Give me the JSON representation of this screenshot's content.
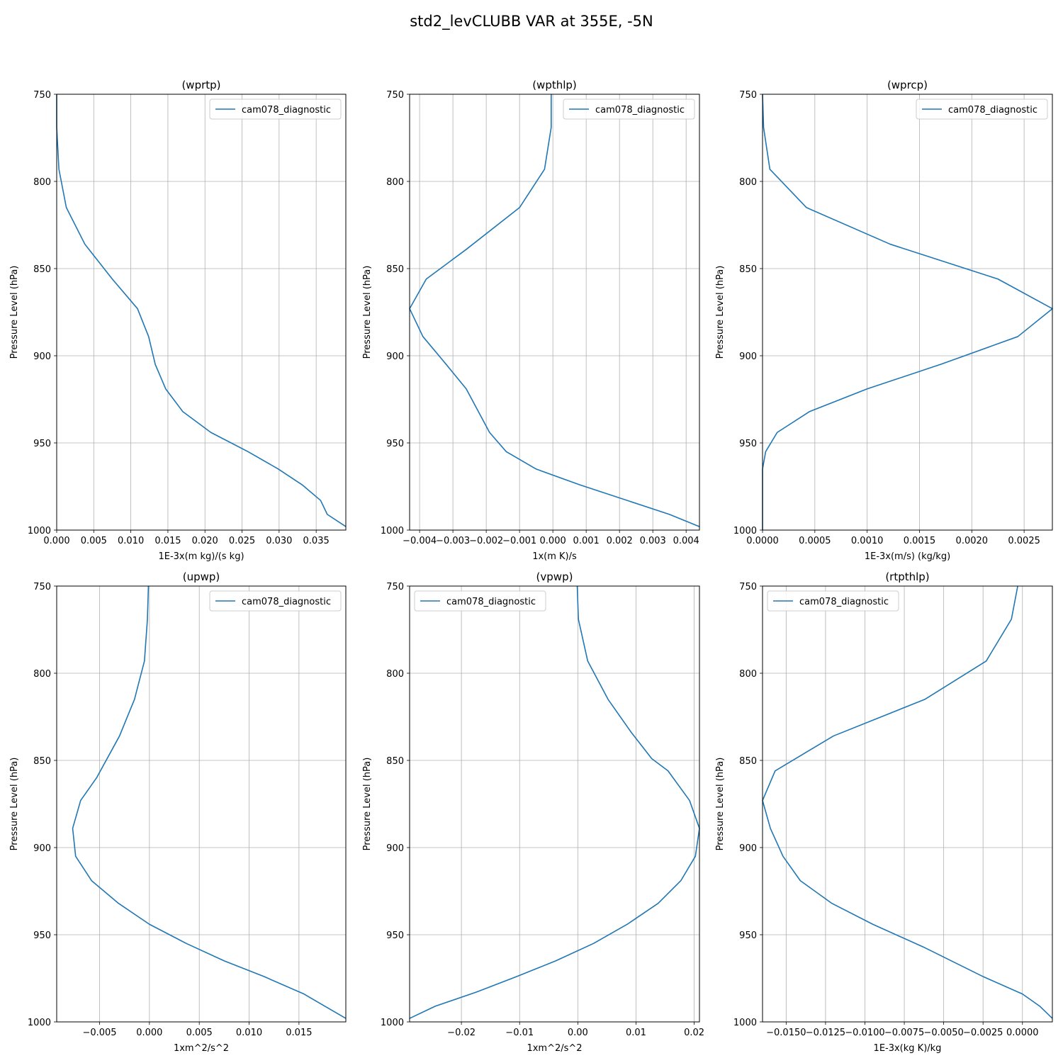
{
  "figure_title": "std2_levCLUBB VAR at 355E, -5N",
  "colors": {
    "series": "#1f77b4",
    "grid": "#b0b0b0",
    "axes": "#000000"
  },
  "chart_data": [
    {
      "type": "line",
      "title": "(wprtp)",
      "xlabel": "1E-3x(m kg)/(s kg)",
      "ylabel": "Pressure Level (hPa)",
      "xlim": [
        0.0,
        0.039
      ],
      "ylim": [
        1000,
        750
      ],
      "xticks": [
        0.0,
        0.005,
        0.01,
        0.015,
        0.02,
        0.025,
        0.03,
        0.035
      ],
      "xticklabels": [
        "0.000",
        "0.005",
        "0.010",
        "0.015",
        "0.020",
        "0.025",
        "0.030",
        "0.035"
      ],
      "yticks": [
        750,
        800,
        850,
        900,
        950,
        1000
      ],
      "yticklabels": [
        "750",
        "800",
        "850",
        "900",
        "950",
        "1000"
      ],
      "grid": true,
      "legend": "upper right",
      "series": [
        {
          "name": "cam078_diagnostic",
          "x": [
            0.0,
            0.0,
            0.0003,
            0.0013,
            0.0038,
            0.0075,
            0.0109,
            0.0124,
            0.0133,
            0.0147,
            0.017,
            0.0208,
            0.0258,
            0.0299,
            0.0331,
            0.0356,
            0.0365,
            0.039
          ],
          "y": [
            750,
            769,
            793,
            815,
            836,
            856,
            873,
            889,
            905,
            919,
            932,
            944,
            955,
            965,
            974,
            983,
            991,
            998
          ]
        }
      ]
    },
    {
      "type": "line",
      "title": "(wpthlp)",
      "xlabel": "1x(m K)/s",
      "ylabel": "Pressure Level (hPa)",
      "xlim": [
        -0.0043,
        0.0044
      ],
      "ylim": [
        1000,
        750
      ],
      "xticks": [
        -0.004,
        -0.003,
        -0.002,
        -0.001,
        0.0,
        0.001,
        0.002,
        0.003,
        0.004
      ],
      "xticklabels": [
        "−0.004",
        "−0.003",
        "−0.002",
        "−0.001",
        "0.000",
        "0.001",
        "0.002",
        "0.003",
        "0.004"
      ],
      "yticks": [
        750,
        800,
        850,
        900,
        950,
        1000
      ],
      "yticklabels": [
        "750",
        "800",
        "850",
        "900",
        "950",
        "1000"
      ],
      "grid": true,
      "legend": "upper right",
      "series": [
        {
          "name": "cam078_diagnostic",
          "x": [
            -5e-05,
            -5e-05,
            -0.00025,
            -0.001,
            -0.0026,
            -0.0038,
            -0.0043,
            -0.0039,
            -0.0032,
            -0.0026,
            -0.0019,
            -0.0014,
            -0.0005,
            0.0008,
            0.0035,
            0.0044
          ],
          "y": [
            750,
            769,
            793,
            815,
            839,
            856,
            873,
            889,
            905,
            919,
            944,
            955,
            965,
            974,
            991,
            998
          ]
        }
      ]
    },
    {
      "type": "line",
      "title": "(wprcp)",
      "xlabel": "1E-3x(m/s) (kg/kg)",
      "ylabel": "Pressure Level (hPa)",
      "xlim": [
        0.0,
        0.00277
      ],
      "ylim": [
        1000,
        750
      ],
      "xticks": [
        0.0,
        0.0005,
        0.001,
        0.0015,
        0.002,
        0.0025
      ],
      "xticklabels": [
        "0.0000",
        "0.0005",
        "0.0010",
        "0.0015",
        "0.0020",
        "0.0025"
      ],
      "yticks": [
        750,
        800,
        850,
        900,
        950,
        1000
      ],
      "yticklabels": [
        "750",
        "800",
        "850",
        "900",
        "950",
        "1000"
      ],
      "grid": true,
      "legend": "upper right",
      "series": [
        {
          "name": "cam078_diagnostic",
          "x": [
            0.0,
            1e-05,
            7e-05,
            0.00042,
            0.00122,
            0.00225,
            0.00277,
            0.00244,
            0.0017,
            0.001,
            0.00045,
            0.00014,
            3e-05,
            0.0,
            0.0
          ],
          "y": [
            750,
            769,
            793,
            815,
            836,
            856,
            873,
            889,
            905,
            919,
            932,
            944,
            955,
            965,
            1000
          ]
        }
      ]
    },
    {
      "type": "line",
      "title": "(upwp)",
      "xlabel": "1xm^2/s^2",
      "ylabel": "Pressure Level (hPa)",
      "xlim": [
        -0.0093,
        0.0197
      ],
      "ylim": [
        1000,
        750
      ],
      "xticks": [
        -0.005,
        0.0,
        0.005,
        0.01,
        0.015
      ],
      "xticklabels": [
        "−0.005",
        "0.000",
        "0.005",
        "0.010",
        "0.015"
      ],
      "yticks": [
        750,
        800,
        850,
        900,
        950,
        1000
      ],
      "yticklabels": [
        "750",
        "800",
        "850",
        "900",
        "950",
        "1000"
      ],
      "grid": true,
      "legend": "upper right",
      "series": [
        {
          "name": "cam078_diagnostic",
          "x": [
            -0.0001,
            -0.0002,
            -0.0005,
            -0.0015,
            -0.003,
            -0.0053,
            -0.0069,
            -0.0077,
            -0.0074,
            -0.0058,
            -0.0031,
            0.0,
            0.0037,
            0.0075,
            0.0115,
            0.0155,
            0.0197
          ],
          "y": [
            750,
            769,
            793,
            815,
            836,
            860,
            873,
            889,
            905,
            919,
            932,
            944,
            955,
            965,
            974,
            984,
            998
          ]
        }
      ]
    },
    {
      "type": "line",
      "title": "(vpwp)",
      "xlabel": "1xm^2/s^2",
      "ylabel": "Pressure Level (hPa)",
      "xlim": [
        -0.0289,
        0.0209
      ],
      "ylim": [
        1000,
        750
      ],
      "xticks": [
        -0.02,
        -0.01,
        0.0,
        0.01,
        0.02
      ],
      "xticklabels": [
        "−0.02",
        "−0.01",
        "0.00",
        "0.01",
        "0.02"
      ],
      "yticks": [
        750,
        800,
        850,
        900,
        950,
        1000
      ],
      "yticklabels": [
        "750",
        "800",
        "850",
        "900",
        "950",
        "1000"
      ],
      "grid": true,
      "legend": "upper left",
      "series": [
        {
          "name": "cam078_diagnostic",
          "x": [
            -0.0001,
            0.0001,
            0.0017,
            0.0052,
            0.0092,
            0.0127,
            0.0155,
            0.0192,
            0.0209,
            0.0202,
            0.0177,
            0.0138,
            0.0085,
            0.0027,
            -0.0038,
            -0.0105,
            -0.0175,
            -0.0245,
            -0.0289
          ],
          "y": [
            750,
            769,
            793,
            815,
            834,
            849,
            856,
            873,
            889,
            905,
            919,
            932,
            944,
            955,
            965,
            974,
            983,
            991,
            998
          ]
        }
      ]
    },
    {
      "type": "line",
      "title": "(rtpthlp)",
      "xlabel": "1E-3x(kg K)/kg",
      "ylabel": "Pressure Level (hPa)",
      "xlim": [
        -0.0165,
        0.0019
      ],
      "ylim": [
        1000,
        750
      ],
      "xticks": [
        -0.015,
        -0.0125,
        -0.01,
        -0.0075,
        -0.005,
        -0.0025,
        0.0
      ],
      "xticklabels": [
        "−0.0150",
        "−0.0125",
        "−0.0100",
        "−0.0075",
        "−0.0050",
        "−0.0025",
        "0.0000"
      ],
      "yticks": [
        750,
        800,
        850,
        900,
        950,
        1000
      ],
      "yticklabels": [
        "750",
        "800",
        "850",
        "900",
        "950",
        "1000"
      ],
      "grid": true,
      "legend": "upper left",
      "series": [
        {
          "name": "cam078_diagnostic",
          "x": [
            -0.0003,
            -0.0007,
            -0.0023,
            -0.0062,
            -0.012,
            -0.0157,
            -0.0165,
            -0.016,
            -0.0152,
            -0.0141,
            -0.0121,
            -0.0095,
            -0.0063,
            -0.0025,
            0.0,
            0.0011,
            0.0019
          ],
          "y": [
            750,
            769,
            793,
            815,
            836,
            856,
            873,
            889,
            905,
            919,
            932,
            944,
            957,
            974,
            984,
            991,
            998
          ]
        }
      ]
    }
  ]
}
